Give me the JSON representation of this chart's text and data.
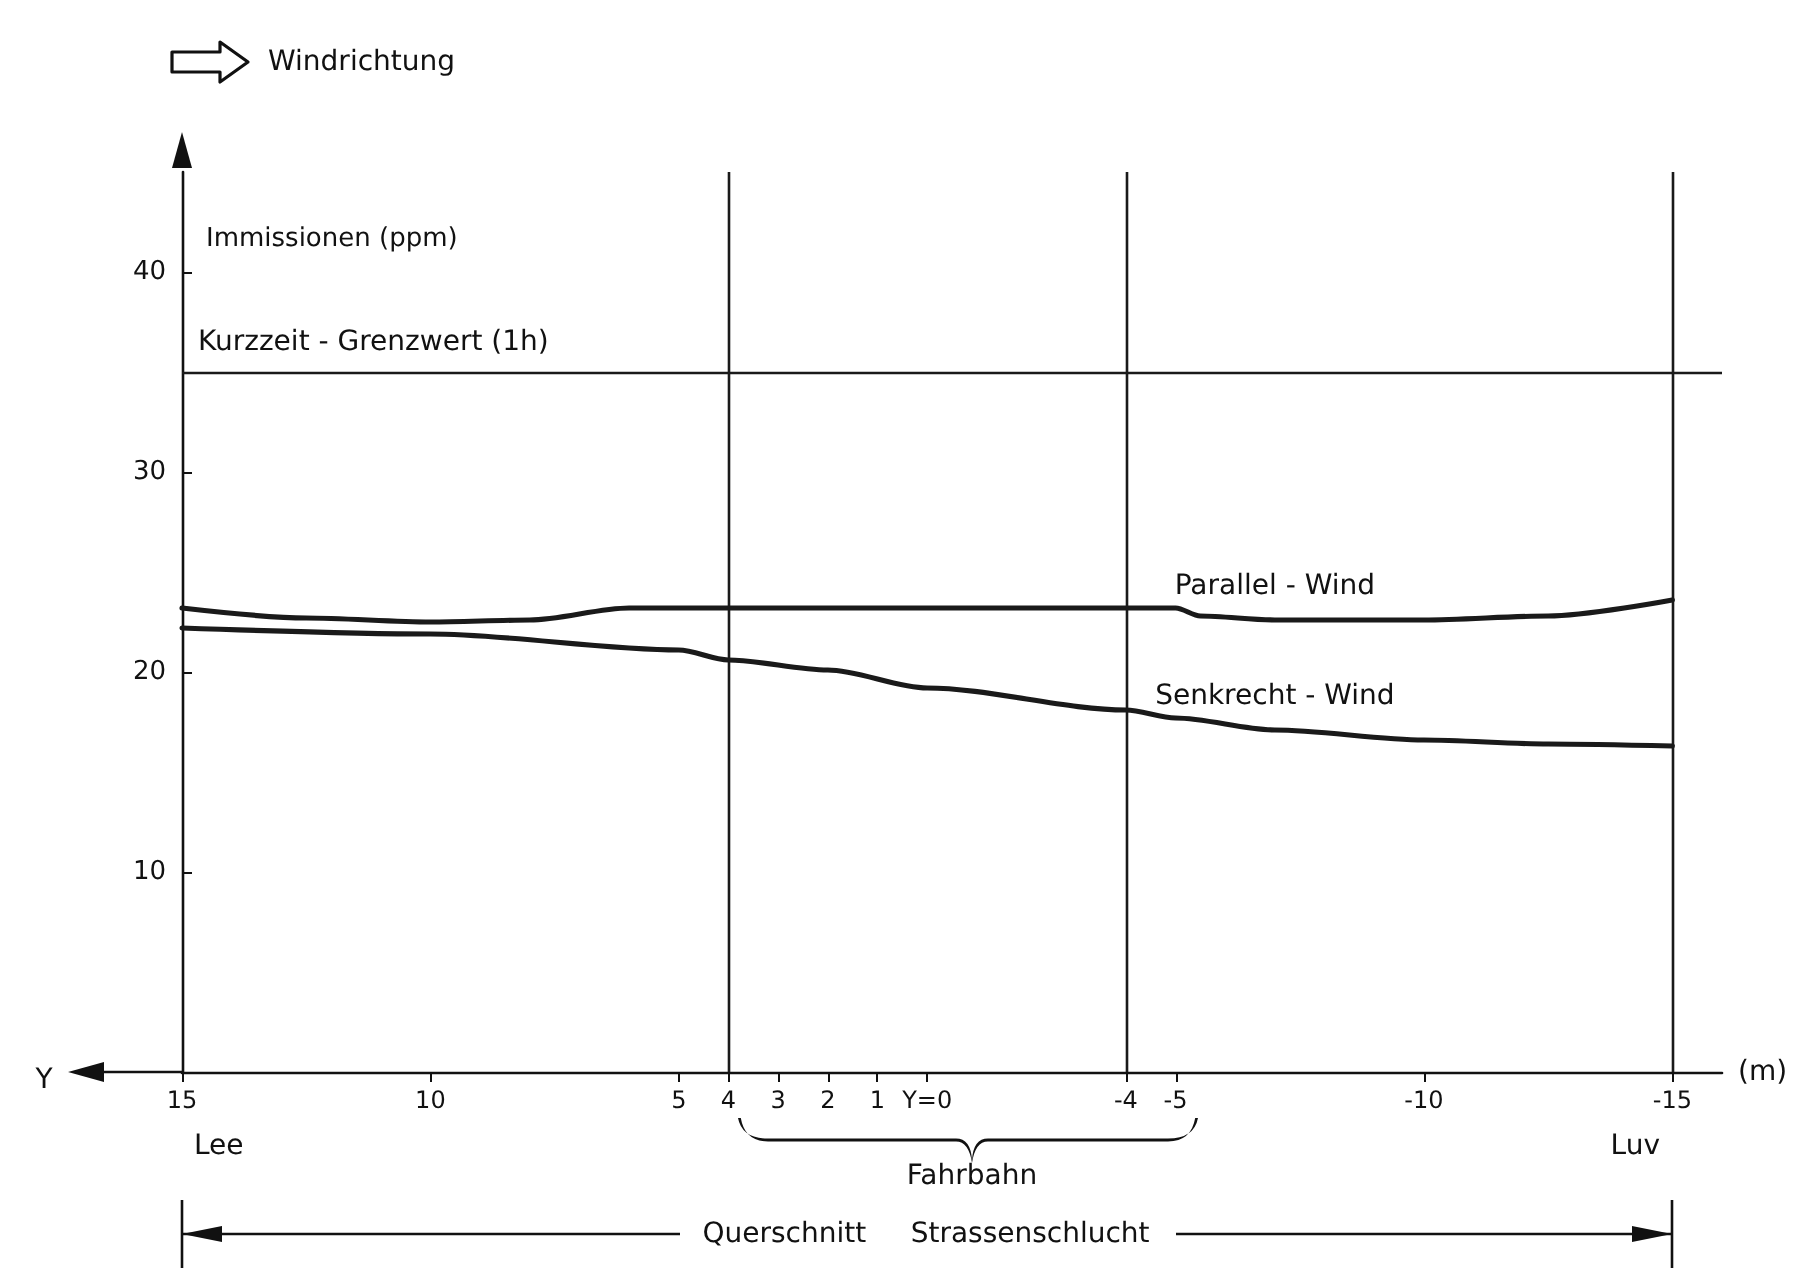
{
  "chart_data": {
    "type": "line",
    "ylabel": "Immissionen (ppm)",
    "xlabel": "(m)",
    "xlim": [
      15,
      -16
    ],
    "xticks": [
      15,
      10,
      5,
      4,
      3,
      2,
      1,
      {
        "value": 0,
        "label": "Y=0"
      },
      -4,
      -5,
      -10,
      -15
    ],
    "ylim": [
      0,
      45
    ],
    "yticks": [
      10,
      20,
      30,
      40
    ],
    "grid": false,
    "legend": false,
    "series": [
      {
        "name": "Parallel - Wind",
        "color": "#1a1a1a",
        "x": [
          15,
          12.5,
          10,
          8,
          6,
          4,
          0,
          -4,
          -5,
          -5.5,
          -7,
          -10,
          -12.5,
          -15
        ],
        "values": [
          23.2,
          22.7,
          22.5,
          22.6,
          23.2,
          23.2,
          23.2,
          23.2,
          23.2,
          22.8,
          22.6,
          22.6,
          22.8,
          23.6
        ]
      },
      {
        "name": "Senkrecht - Wind",
        "color": "#1a1a1a",
        "x": [
          15,
          10,
          5,
          4,
          2,
          0,
          -4,
          -5,
          -7,
          -10,
          -12.5,
          -15
        ],
        "values": [
          22.2,
          21.9,
          21.1,
          20.6,
          20.1,
          19.2,
          18.1,
          17.7,
          17.1,
          16.6,
          16.4,
          16.3
        ]
      }
    ],
    "ref_lines": [
      {
        "axis": "y",
        "value": 35,
        "label": "Kurzzeit - Grenzwert (1h)"
      },
      {
        "axis": "x",
        "value": 4,
        "label": null
      },
      {
        "axis": "x",
        "value": -4,
        "label": null
      },
      {
        "axis": "x",
        "value": -15,
        "label": null
      }
    ],
    "annotations": [
      "Windrichtung",
      "Y",
      "Lee",
      "Luv",
      "Fahrbahn",
      "Querschnitt     Strassenschlucht"
    ]
  }
}
